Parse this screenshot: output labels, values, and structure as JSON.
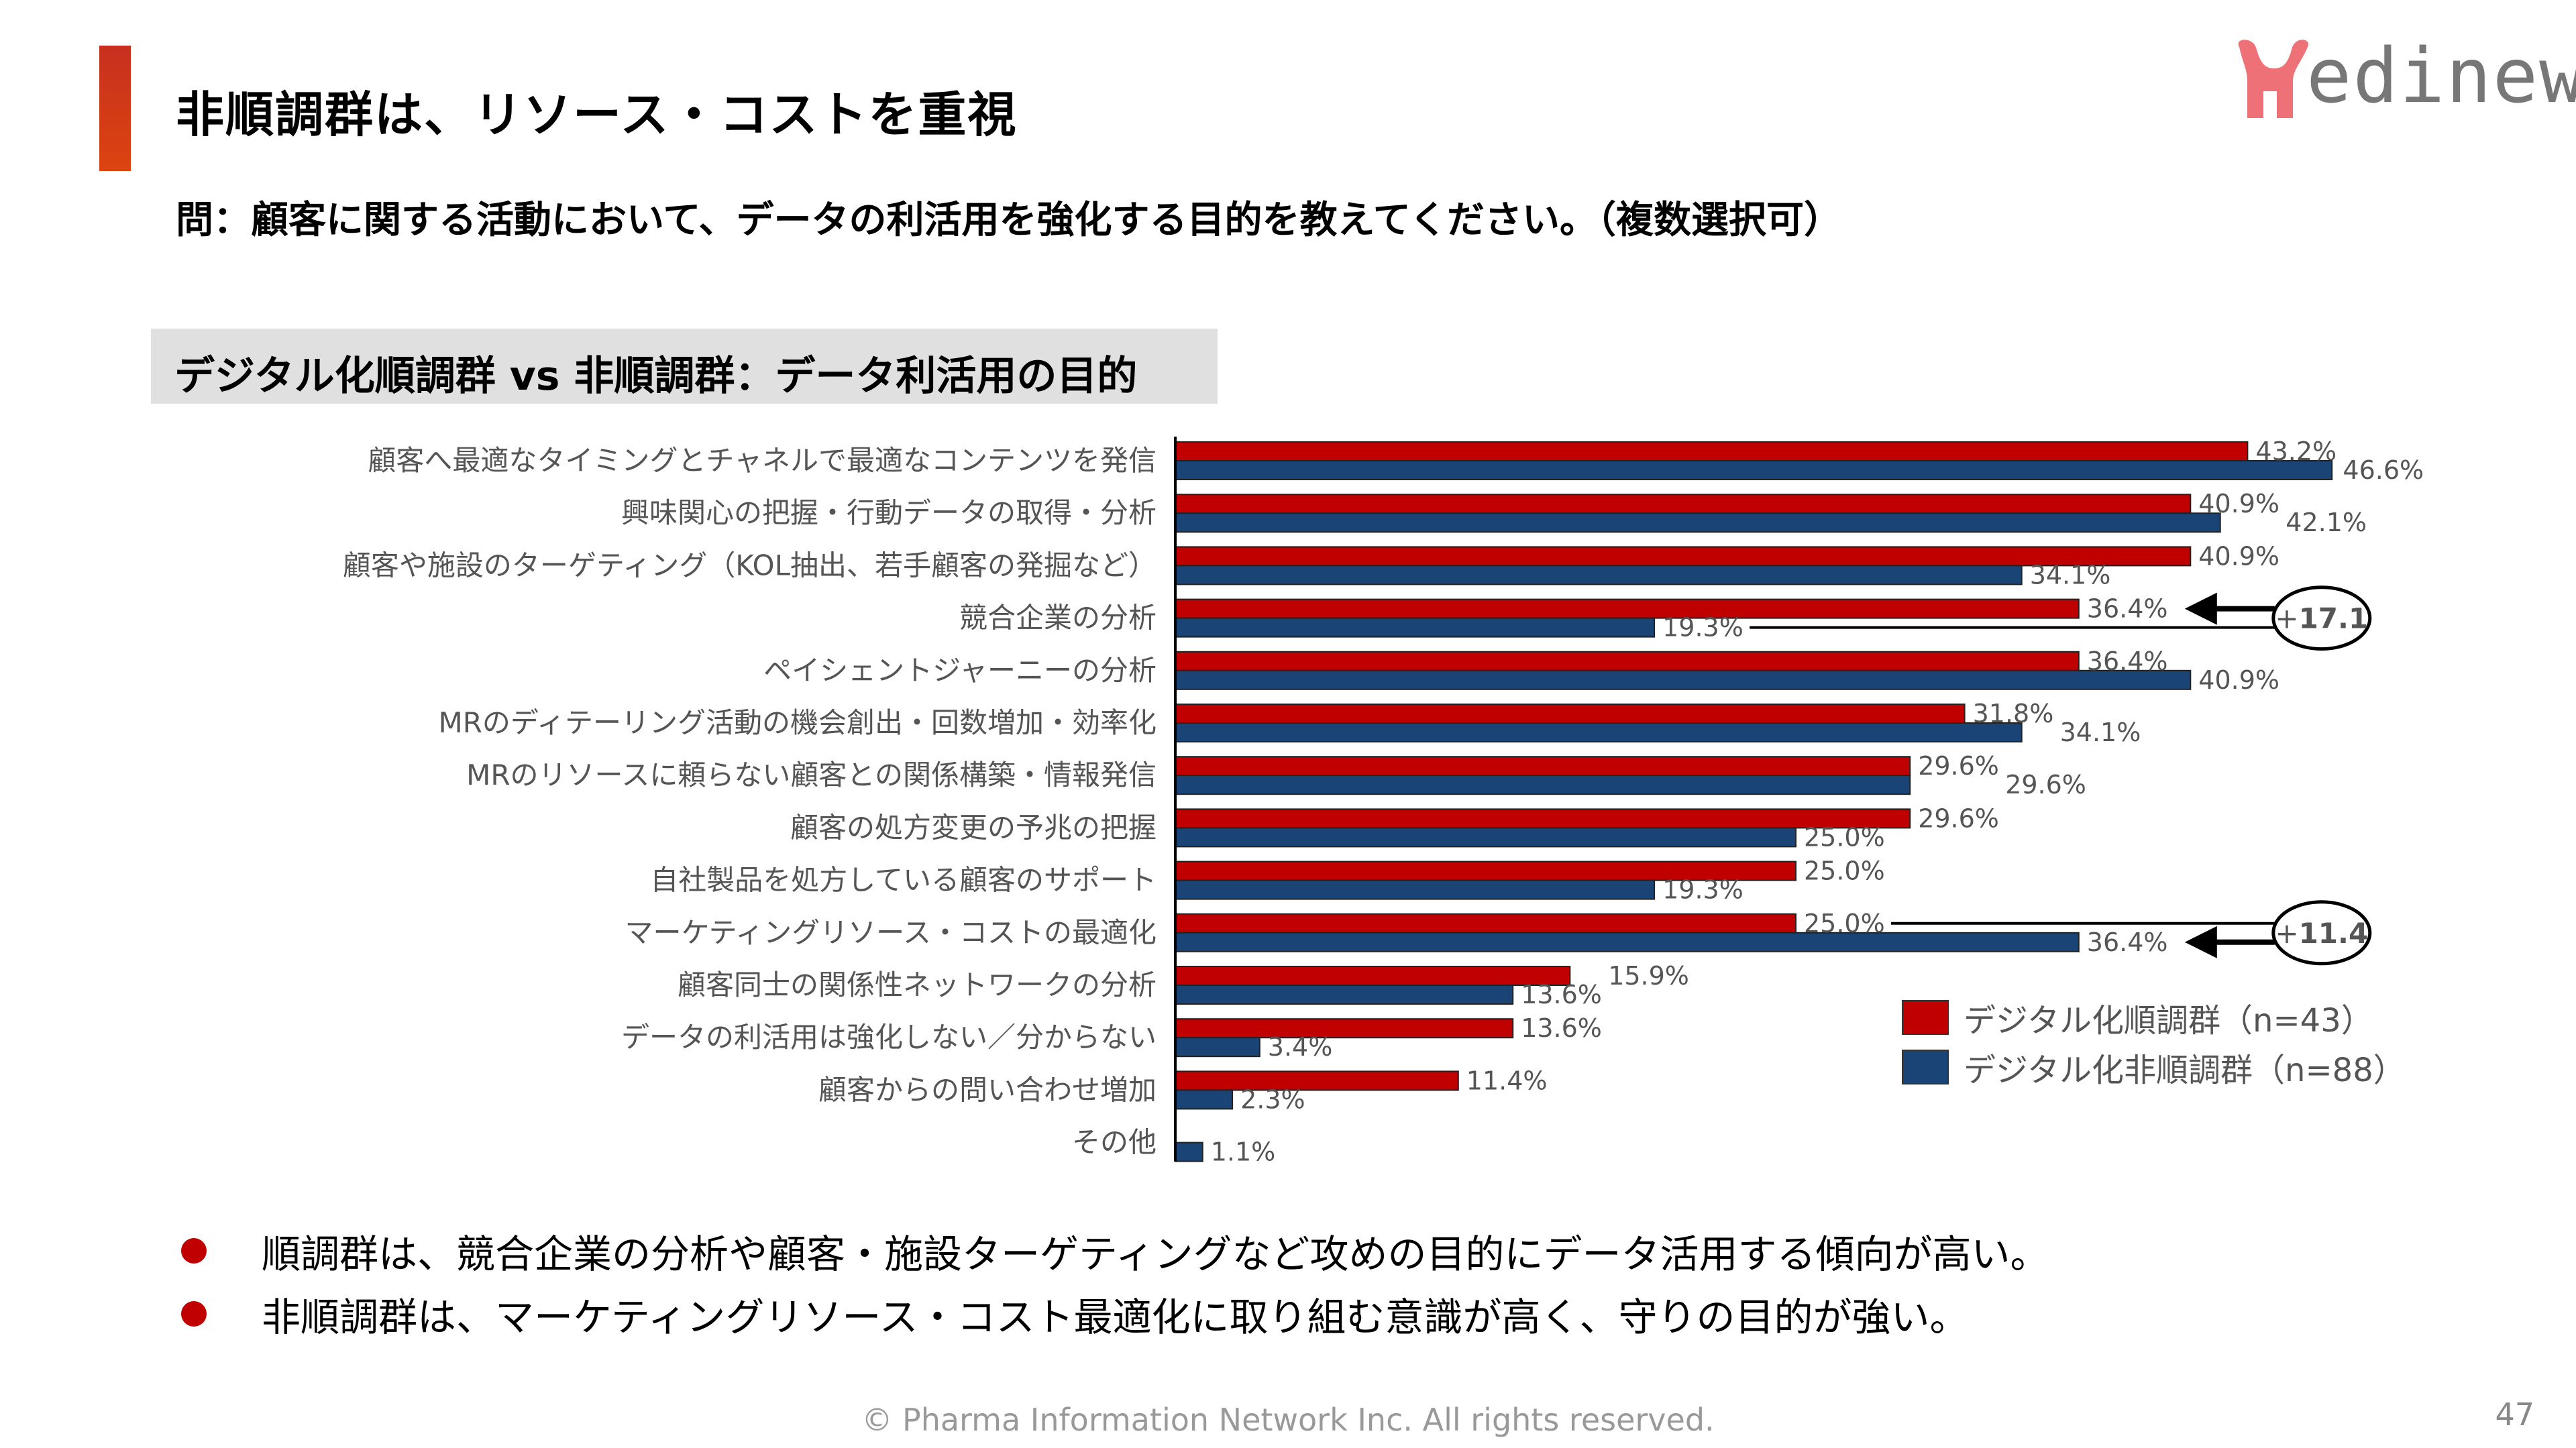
{
  "header": {
    "title": "非順調群は、リソース・コストを重視",
    "question": "問：顧客に関する活動において、データの利活用を強化する目的を教えてください。（複数選択可）",
    "accent_color": "#d63b14"
  },
  "logo": {
    "text": "edinew",
    "brand_letter_color": "#ef7178",
    "text_color": "#777777"
  },
  "section": {
    "title": "デジタル化順調群 vs 非順調群：データ利活用の目的"
  },
  "chart_data": {
    "type": "bar",
    "orientation": "horizontal",
    "title": "デジタル化順調群 vs 非順調群：データ利活用の目的",
    "xlabel": "",
    "ylabel": "",
    "unit": "%",
    "xlim": [
      0,
      50
    ],
    "grid": false,
    "legend_position": "right",
    "categories": [
      "顧客へ最適なタイミングとチャネルで最適なコンテンツを発信",
      "興味関心の把握・行動データの取得・分析",
      "顧客や施設のターゲティング（KOL抽出、若手顧客の発掘など）",
      "競合企業の分析",
      "ペイシェントジャーニーの分析",
      "MRのディテーリング活動の機会創出・回数増加・効率化",
      "MRのリソースに頼らない顧客との関係構築・情報発信",
      "顧客の処方変更の予兆の把握",
      "自社製品を処方している顧客のサポート",
      "マーケティングリソース・コストの最適化",
      "顧客同士の関係性ネットワークの分析",
      "データの利活用は強化しない／分からない",
      "顧客からの問い合わせ増加",
      "その他"
    ],
    "series": [
      {
        "name": "デジタル化順調群（n=43）",
        "color": "#c00000",
        "values": [
          43.2,
          40.9,
          40.9,
          36.4,
          36.4,
          31.8,
          29.6,
          29.6,
          25.0,
          25.0,
          15.9,
          13.6,
          11.4,
          null
        ],
        "labels": [
          "43.2%",
          "40.9%",
          "40.9%",
          "36.4%",
          "36.4%",
          "31.8%",
          "29.6%",
          "29.6%",
          "25.0%",
          "25.0%",
          "15.9%",
          "13.6%",
          "11.4%",
          ""
        ]
      },
      {
        "name": "デジタル化非順調群（n=88）",
        "color": "#1a4475",
        "values": [
          46.6,
          42.1,
          34.1,
          19.3,
          40.9,
          34.1,
          29.6,
          25.0,
          19.3,
          36.4,
          13.6,
          3.4,
          2.3,
          1.1
        ],
        "labels": [
          "46.6%",
          "42.1%",
          "34.1%",
          "19.3%",
          "40.9%",
          "34.1%",
          "29.6%",
          "25.0%",
          "19.3%",
          "36.4%",
          "13.6%",
          "3.4%",
          "2.3%",
          "1.1%"
        ]
      }
    ],
    "annotations": [
      {
        "category_index": 3,
        "text_sign": "+",
        "text_value": "17.1",
        "from_series": 1,
        "to_series": 0
      },
      {
        "category_index": 9,
        "text_sign": "+",
        "text_value": "11.4",
        "from_series": 0,
        "to_series": 1
      }
    ]
  },
  "legend": {
    "items": [
      {
        "label": "デジタル化順調群（n=43）",
        "color": "#c00000"
      },
      {
        "label": "デジタル化非順調群（n=88）",
        "color": "#1a4475"
      }
    ]
  },
  "bullets": [
    "順調群は、競合企業の分析や顧客・施設ターゲティングなど攻めの目的にデータ活用する傾向が高い。",
    "非順調群は、マーケティングリソース・コスト最適化に取り組む意識が高く、守りの目的が強い。"
  ],
  "bullet_color": "#c00000",
  "footer": {
    "copyright": "© Pharma Information Network Inc.  All rights reserved.",
    "page_number": "47"
  }
}
